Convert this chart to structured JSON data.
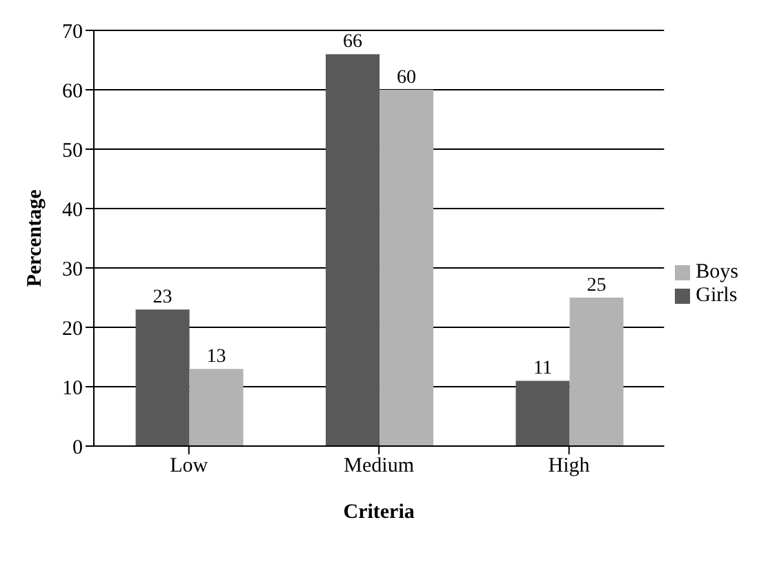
{
  "chart_data": {
    "type": "bar",
    "xlabel": "Criteria",
    "ylabel": "Percentage",
    "categories": [
      "Low",
      "Medium",
      "High"
    ],
    "series": [
      {
        "name": "Girls",
        "color": "#595959",
        "values": [
          23,
          66,
          11
        ]
      },
      {
        "name": "Boys",
        "color": "#b3b3b3",
        "values": [
          13,
          60,
          25
        ]
      }
    ],
    "ylim": [
      0,
      70
    ],
    "yticks": [
      0,
      10,
      20,
      30,
      40,
      50,
      60,
      70
    ],
    "grid": "y",
    "legend": "right",
    "data_labels": true
  }
}
